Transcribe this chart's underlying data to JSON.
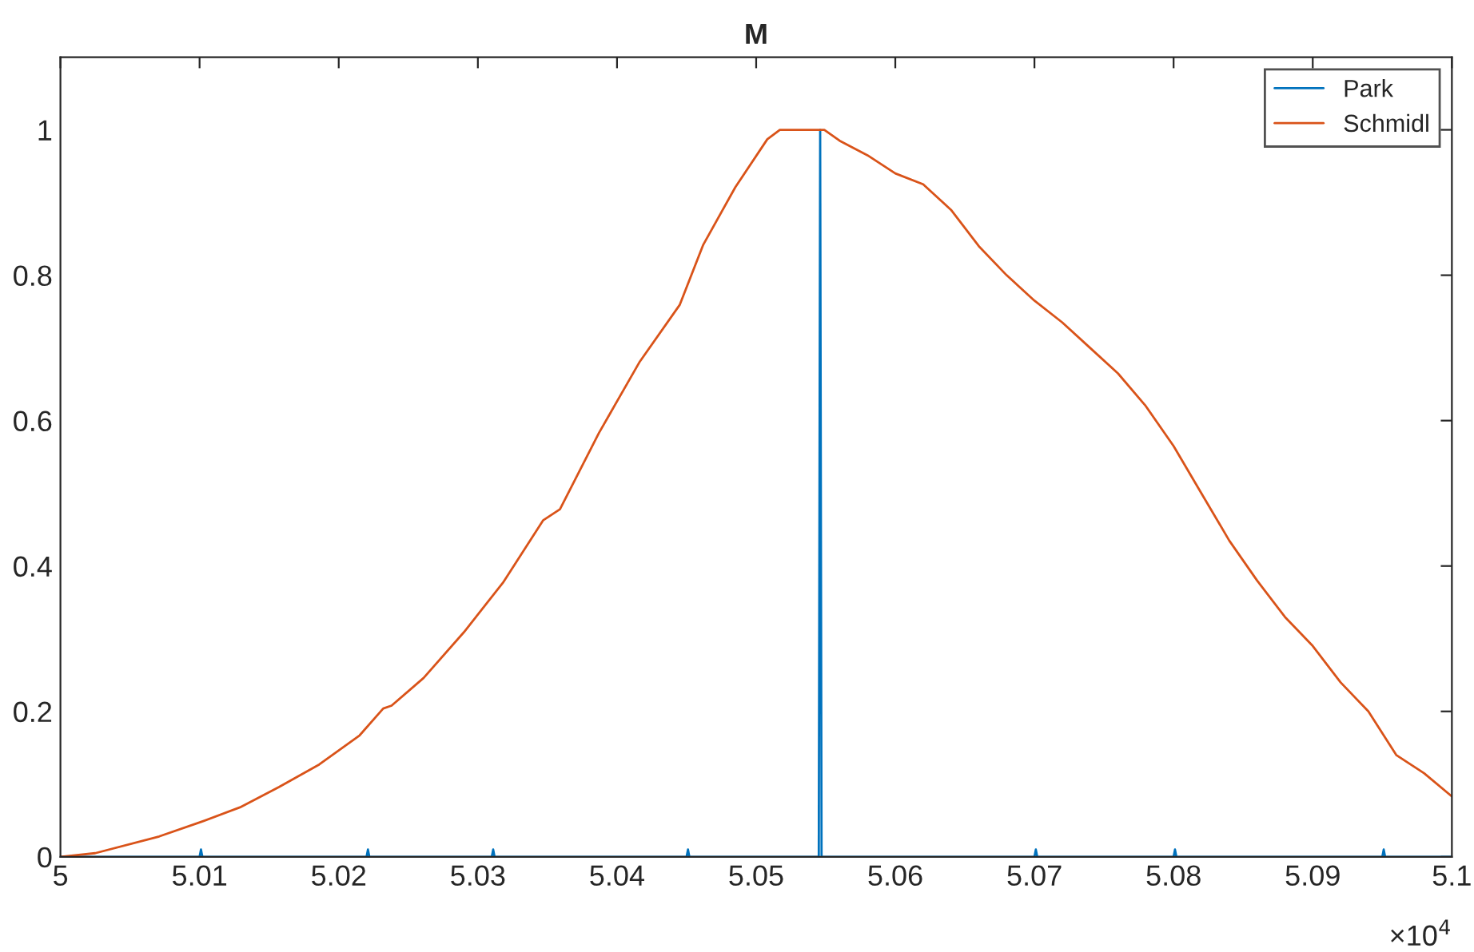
{
  "chart_data": {
    "type": "line",
    "title": "M",
    "xlim": [
      5,
      5.1
    ],
    "xticks": [
      5,
      5.01,
      5.02,
      5.03,
      5.04,
      5.05,
      5.06,
      5.07,
      5.08,
      5.09,
      5.1
    ],
    "ylim": [
      0,
      1.1
    ],
    "yticks": [
      0,
      0.2,
      0.4,
      0.6,
      0.8,
      1
    ],
    "annotations": [
      "×10$^{4}$"
    ],
    "grid": false,
    "legend": "top right",
    "marker": "none",
    "line_style": "solid",
    "series": [
      {
        "name": "Park",
        "color": "#0072bd",
        "x": [
          5,
          5.01,
          5.0101,
          5.0102,
          5.02,
          5.022,
          5.0221,
          5.0222,
          5.03,
          5.031,
          5.0311,
          5.0312,
          5.04,
          5.045,
          5.0451,
          5.0452,
          5.05,
          5.0545,
          5.0546,
          5.0547,
          5.06,
          5.07,
          5.0701,
          5.0702,
          5.08,
          5.0801,
          5.0802,
          5.09,
          5.095,
          5.0951,
          5.0952,
          5.1
        ],
        "values": [
          0,
          0,
          0.01,
          0,
          0,
          0,
          0.01,
          0,
          0,
          0,
          0.01,
          0,
          0,
          0,
          0.01,
          0,
          0,
          0,
          1,
          0,
          0,
          0,
          0.01,
          0,
          0,
          0.01,
          0,
          0,
          0,
          0.01,
          0,
          0
        ]
      },
      {
        "name": "Schmidl",
        "color": "#d95319",
        "x": [
          5,
          5.0025,
          5.0071,
          5.0101,
          5.0129,
          5.0157,
          5.0186,
          5.0215,
          5.0232,
          5.0238,
          5.0261,
          5.029,
          5.0318,
          5.0347,
          5.0359,
          5.0387,
          5.0416,
          5.0445,
          5.0462,
          5.0485,
          5.0508,
          5.0517,
          5.0549,
          5.056,
          5.058,
          5.06,
          5.062,
          5.064,
          5.066,
          5.068,
          5.07,
          5.072,
          5.074,
          5.076,
          5.078,
          5.08,
          5.082,
          5.084,
          5.086,
          5.088,
          5.09,
          5.092,
          5.094,
          5.096,
          5.098,
          5.1
        ],
        "values": [
          0,
          0.005,
          0.028,
          0.048,
          0.068,
          0.096,
          0.127,
          0.167,
          0.204,
          0.208,
          0.246,
          0.309,
          0.377,
          0.463,
          0.478,
          0.583,
          0.68,
          0.759,
          0.842,
          0.921,
          0.987,
          1,
          1,
          0.985,
          0.965,
          0.94,
          0.925,
          0.89,
          0.84,
          0.8,
          0.765,
          0.735,
          0.7,
          0.665,
          0.62,
          0.565,
          0.5,
          0.435,
          0.38,
          0.33,
          0.29,
          0.24,
          0.2,
          0.14,
          0.115,
          0.083
        ]
      }
    ]
  }
}
